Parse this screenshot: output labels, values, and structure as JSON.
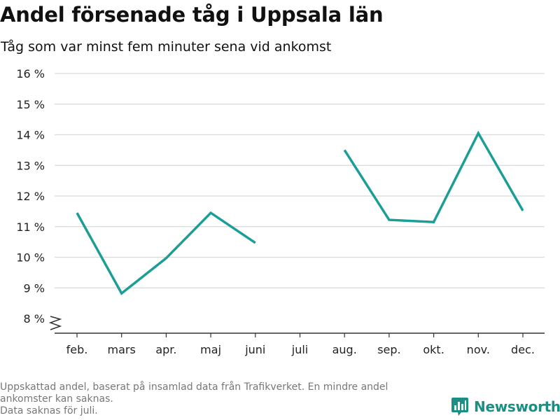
{
  "title": "Andel försenade tåg i Uppsala län",
  "subtitle": "Tåg som var minst fem minuter sena vid ankomst",
  "footnote": {
    "line1": "Uppskattad andel, baserat på insamlad data från Trafikverket. En mindre andel",
    "line2": "ankomster kan saknas.",
    "line3": "Data saknas för juli."
  },
  "brand": {
    "name": "Newsworthy",
    "icon": "bar-chart-icon"
  },
  "colors": {
    "line": "#1a9e95",
    "grid": "#d9d9d9",
    "axis": "#333333",
    "brand": "#1a8f86"
  },
  "chart_data": {
    "type": "line",
    "title": "Andel försenade tåg i Uppsala län",
    "subtitle": "Tåg som var minst fem minuter sena vid ankomst",
    "categories": [
      "feb.",
      "mars",
      "apr.",
      "maj",
      "juni",
      "juli",
      "aug.",
      "sep.",
      "okt.",
      "nov.",
      "dec."
    ],
    "series": [
      {
        "values": [
          11.45,
          8.82,
          9.97,
          11.45,
          10.47,
          null,
          13.5,
          11.22,
          11.15,
          14.05,
          11.52
        ]
      }
    ],
    "ylim": [
      8,
      16
    ],
    "yticks": [
      8,
      9,
      10,
      11,
      12,
      13,
      14,
      15,
      16
    ],
    "ytick_labels": [
      "8 %",
      "9 %",
      "10 %",
      "11 %",
      "12 %",
      "13 %",
      "14 %",
      "15 %",
      "16 %"
    ],
    "axis_break": true,
    "grid": true,
    "legend": "none"
  }
}
